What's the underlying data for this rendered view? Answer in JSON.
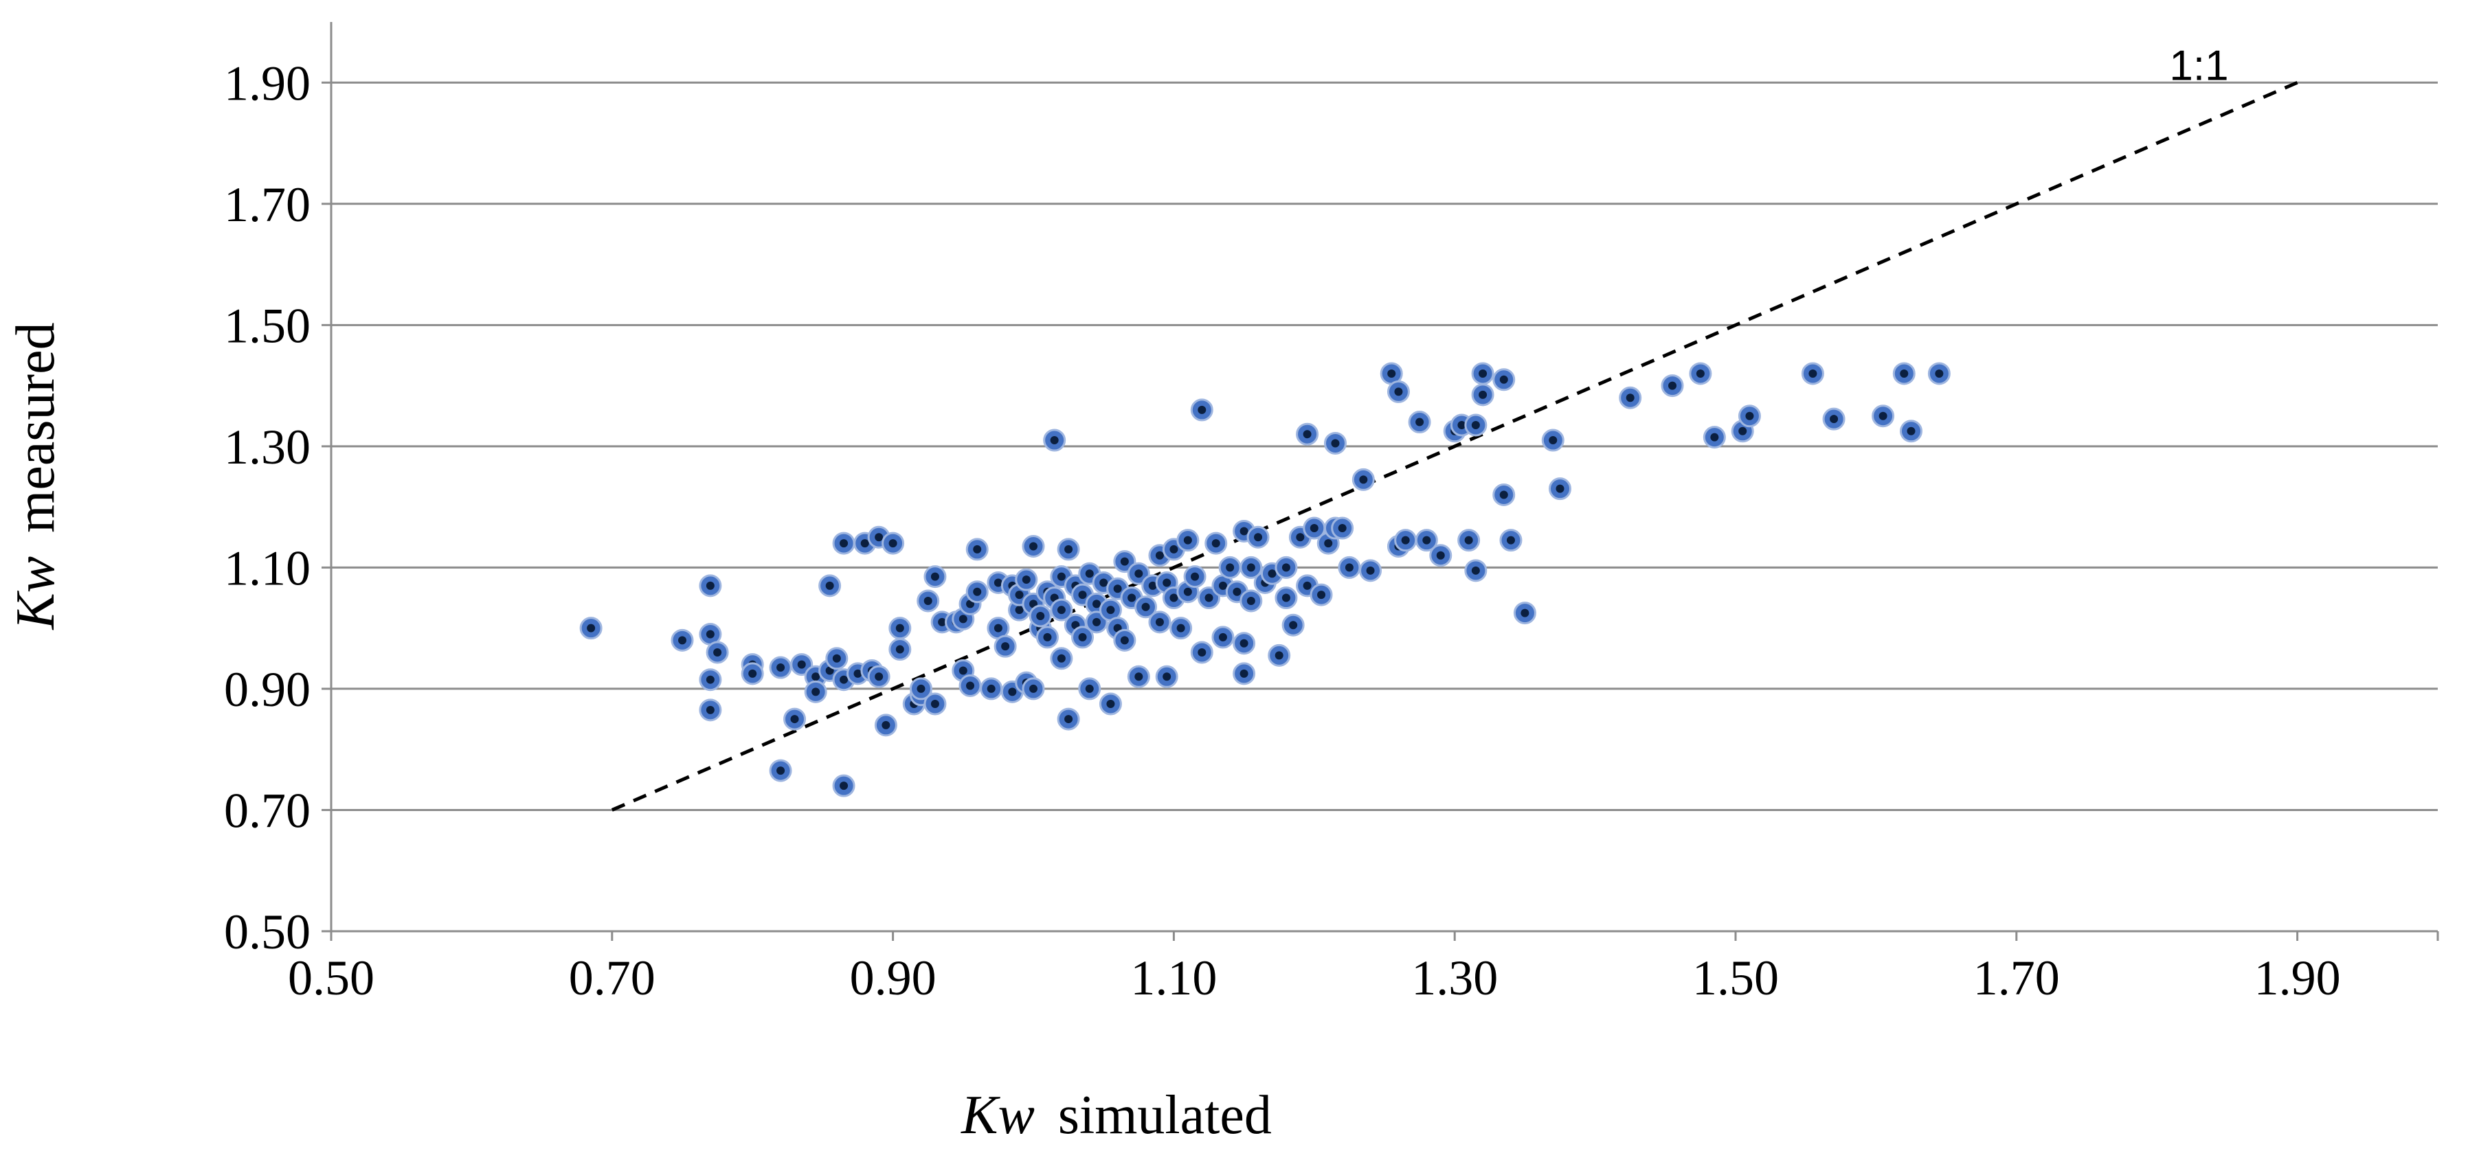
{
  "chart_data": {
    "type": "scatter",
    "title": "",
    "xlabel": {
      "var": "Kw",
      "text": "simulated"
    },
    "ylabel": {
      "var": "Kw",
      "text": "measured"
    },
    "xlim": [
      0.5,
      2.0
    ],
    "ylim": [
      0.5,
      2.0
    ],
    "xticks": [
      "0.50",
      "0.70",
      "0.90",
      "1.10",
      "1.30",
      "1.50",
      "1.70",
      "1.90"
    ],
    "yticks": [
      "0.50",
      "0.70",
      "0.90",
      "1.10",
      "1.30",
      "1.50",
      "1.70",
      "1.90"
    ],
    "grid": "horizontal",
    "reference_line": {
      "label": "1:1",
      "x": [
        0.7,
        1.9
      ],
      "y": [
        0.7,
        1.9
      ]
    },
    "colors": {
      "marker_fill": "#4472c4",
      "marker_center": "#0b1f3f",
      "gridline": "#8c8c8c",
      "axis": "#8c8c8c",
      "reference": "#000000"
    },
    "series": [
      {
        "name": "Kw",
        "points": [
          [
            0.685,
            1.0
          ],
          [
            0.75,
            0.98
          ],
          [
            0.77,
            1.07
          ],
          [
            0.77,
            0.99
          ],
          [
            0.775,
            0.96
          ],
          [
            0.77,
            0.915
          ],
          [
            0.77,
            0.865
          ],
          [
            0.8,
            0.94
          ],
          [
            0.8,
            0.925
          ],
          [
            0.82,
            0.765
          ],
          [
            0.82,
            0.935
          ],
          [
            0.83,
            0.85
          ],
          [
            0.835,
            0.94
          ],
          [
            0.845,
            0.92
          ],
          [
            0.845,
            0.895
          ],
          [
            0.855,
            0.93
          ],
          [
            0.86,
            0.95
          ],
          [
            0.865,
            0.915
          ],
          [
            0.855,
            1.07
          ],
          [
            0.865,
            0.74
          ],
          [
            0.865,
            1.14
          ],
          [
            0.875,
            0.925
          ],
          [
            0.88,
            1.14
          ],
          [
            0.885,
            0.93
          ],
          [
            0.89,
            0.92
          ],
          [
            0.89,
            1.15
          ],
          [
            0.895,
            0.84
          ],
          [
            0.9,
            1.14
          ],
          [
            0.905,
            1.0
          ],
          [
            0.905,
            0.965
          ],
          [
            0.915,
            0.875
          ],
          [
            0.92,
            0.89
          ],
          [
            0.92,
            0.9
          ],
          [
            0.925,
            1.045
          ],
          [
            0.93,
            1.085
          ],
          [
            0.93,
            0.875
          ],
          [
            0.935,
            1.01
          ],
          [
            0.945,
            1.01
          ],
          [
            0.95,
            1.015
          ],
          [
            0.95,
            0.93
          ],
          [
            0.955,
            0.905
          ],
          [
            0.955,
            1.04
          ],
          [
            0.96,
            1.06
          ],
          [
            0.96,
            1.13
          ],
          [
            0.97,
            0.9
          ],
          [
            0.975,
            1.075
          ],
          [
            0.975,
            1.0
          ],
          [
            0.98,
            0.97
          ],
          [
            0.985,
            0.895
          ],
          [
            0.985,
            1.07
          ],
          [
            0.99,
            1.03
          ],
          [
            0.99,
            1.055
          ],
          [
            0.995,
            0.91
          ],
          [
            0.995,
            1.08
          ],
          [
            1.0,
            0.9
          ],
          [
            1.0,
            1.135
          ],
          [
            1.0,
            1.04
          ],
          [
            1.005,
            1.0
          ],
          [
            1.005,
            1.02
          ],
          [
            1.01,
            1.06
          ],
          [
            1.01,
            0.985
          ],
          [
            1.015,
            1.31
          ],
          [
            1.015,
            1.05
          ],
          [
            1.02,
            0.95
          ],
          [
            1.02,
            1.03
          ],
          [
            1.02,
            1.085
          ],
          [
            1.025,
            0.85
          ],
          [
            1.025,
            1.13
          ],
          [
            1.03,
            1.005
          ],
          [
            1.03,
            1.07
          ],
          [
            1.035,
            0.985
          ],
          [
            1.035,
            1.055
          ],
          [
            1.04,
            0.9
          ],
          [
            1.04,
            1.09
          ],
          [
            1.045,
            1.04
          ],
          [
            1.045,
            1.01
          ],
          [
            1.05,
            1.075
          ],
          [
            1.055,
            1.03
          ],
          [
            1.055,
            0.875
          ],
          [
            1.06,
            1.065
          ],
          [
            1.06,
            1.0
          ],
          [
            1.065,
            1.11
          ],
          [
            1.065,
            0.98
          ],
          [
            1.07,
            1.05
          ],
          [
            1.075,
            0.92
          ],
          [
            1.075,
            1.09
          ],
          [
            1.08,
            1.035
          ],
          [
            1.085,
            1.07
          ],
          [
            1.09,
            1.01
          ],
          [
            1.09,
            1.12
          ],
          [
            1.095,
            0.92
          ],
          [
            1.095,
            1.075
          ],
          [
            1.1,
            1.05
          ],
          [
            1.1,
            1.13
          ],
          [
            1.105,
            1.0
          ],
          [
            1.11,
            1.06
          ],
          [
            1.11,
            1.145
          ],
          [
            1.115,
            1.085
          ],
          [
            1.12,
            0.96
          ],
          [
            1.12,
            1.36
          ],
          [
            1.125,
            1.05
          ],
          [
            1.13,
            1.14
          ],
          [
            1.135,
            1.07
          ],
          [
            1.135,
            0.985
          ],
          [
            1.14,
            1.1
          ],
          [
            1.145,
            1.06
          ],
          [
            1.15,
            1.16
          ],
          [
            1.15,
            0.975
          ],
          [
            1.15,
            0.925
          ],
          [
            1.155,
            1.045
          ],
          [
            1.155,
            1.1
          ],
          [
            1.16,
            1.15
          ],
          [
            1.165,
            1.075
          ],
          [
            1.17,
            1.09
          ],
          [
            1.175,
            0.955
          ],
          [
            1.18,
            1.1
          ],
          [
            1.18,
            1.05
          ],
          [
            1.185,
            1.005
          ],
          [
            1.19,
            1.15
          ],
          [
            1.195,
            1.32
          ],
          [
            1.195,
            1.07
          ],
          [
            1.2,
            1.165
          ],
          [
            1.205,
            1.055
          ],
          [
            1.21,
            1.14
          ],
          [
            1.215,
            1.165
          ],
          [
            1.215,
            1.305
          ],
          [
            1.22,
            1.165
          ],
          [
            1.225,
            1.1
          ],
          [
            1.235,
            1.245
          ],
          [
            1.24,
            1.095
          ],
          [
            1.255,
            1.42
          ],
          [
            1.26,
            1.39
          ],
          [
            1.26,
            1.135
          ],
          [
            1.265,
            1.145
          ],
          [
            1.275,
            1.34
          ],
          [
            1.28,
            1.145
          ],
          [
            1.29,
            1.12
          ],
          [
            1.3,
            1.325
          ],
          [
            1.305,
            1.335
          ],
          [
            1.31,
            1.145
          ],
          [
            1.315,
            1.095
          ],
          [
            1.315,
            1.335
          ],
          [
            1.32,
            1.42
          ],
          [
            1.32,
            1.385
          ],
          [
            1.335,
            1.41
          ],
          [
            1.335,
            1.22
          ],
          [
            1.34,
            1.145
          ],
          [
            1.35,
            1.025
          ],
          [
            1.37,
            1.31
          ],
          [
            1.375,
            1.23
          ],
          [
            1.425,
            1.38
          ],
          [
            1.455,
            1.4
          ],
          [
            1.475,
            1.42
          ],
          [
            1.485,
            1.315
          ],
          [
            1.505,
            1.325
          ],
          [
            1.51,
            1.35
          ],
          [
            1.555,
            1.42
          ],
          [
            1.57,
            1.345
          ],
          [
            1.605,
            1.35
          ],
          [
            1.62,
            1.42
          ],
          [
            1.625,
            1.325
          ],
          [
            1.645,
            1.42
          ]
        ]
      }
    ]
  }
}
